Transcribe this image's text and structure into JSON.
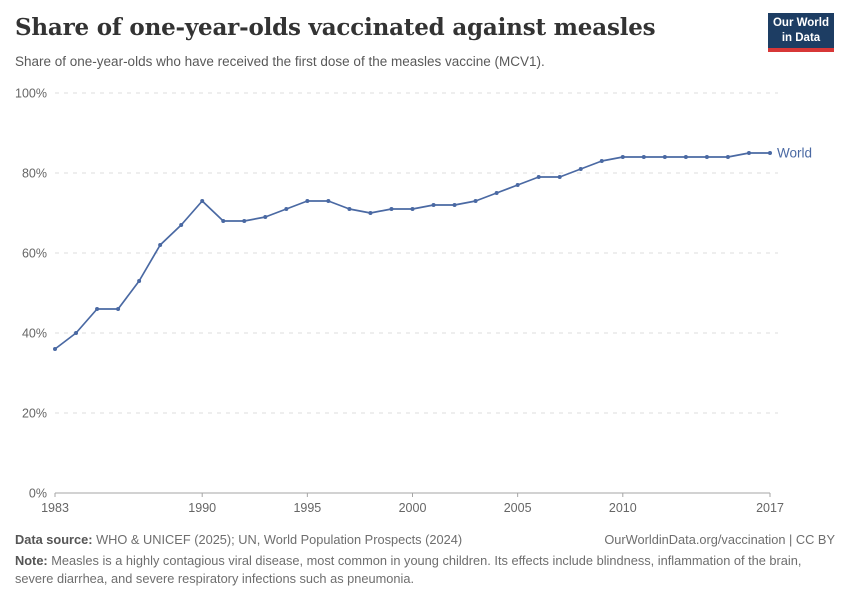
{
  "header": {
    "title": "Share of one-year-olds vaccinated against measles",
    "subtitle": "Share of one-year-olds who have received the first dose of the measles vaccine (MCV1).",
    "logo": {
      "line1": "Our World",
      "line2": "in Data"
    }
  },
  "chart_data": {
    "type": "line",
    "title": "Share of one-year-olds vaccinated against measles",
    "xlabel": "",
    "ylabel": "",
    "xlim": [
      1983,
      2017
    ],
    "ylim": [
      0,
      100
    ],
    "grid": "horizontal-dashed",
    "legend_position": "end-of-line",
    "x_ticks": [
      {
        "value": 1983,
        "label": "1983"
      },
      {
        "value": 1990,
        "label": "1990"
      },
      {
        "value": 1995,
        "label": "1995"
      },
      {
        "value": 2000,
        "label": "2000"
      },
      {
        "value": 2005,
        "label": "2005"
      },
      {
        "value": 2010,
        "label": "2010"
      },
      {
        "value": 2017,
        "label": "2017"
      }
    ],
    "y_ticks": [
      {
        "value": 0,
        "label": "0%"
      },
      {
        "value": 20,
        "label": "20%"
      },
      {
        "value": 40,
        "label": "40%"
      },
      {
        "value": 60,
        "label": "60%"
      },
      {
        "value": 80,
        "label": "80%"
      },
      {
        "value": 100,
        "label": "100%"
      }
    ],
    "series": [
      {
        "name": "World",
        "color": "#4a69a3",
        "x": [
          1983,
          1984,
          1985,
          1986,
          1987,
          1988,
          1989,
          1990,
          1991,
          1992,
          1993,
          1994,
          1995,
          1996,
          1997,
          1998,
          1999,
          2000,
          2001,
          2002,
          2003,
          2004,
          2005,
          2006,
          2007,
          2008,
          2009,
          2010,
          2011,
          2012,
          2013,
          2014,
          2015,
          2016,
          2017
        ],
        "values": [
          36,
          40,
          46,
          46,
          53,
          62,
          67,
          73,
          68,
          68,
          69,
          71,
          73,
          73,
          71,
          70,
          71,
          71,
          72,
          72,
          73,
          75,
          77,
          79,
          79,
          81,
          83,
          84,
          84,
          84,
          84,
          84,
          84,
          85,
          85
        ]
      }
    ]
  },
  "footer": {
    "source_label": "Data source:",
    "source_text": " WHO & UNICEF (2025); UN, World Population Prospects (2024)",
    "attribution": "OurWorldinData.org/vaccination | CC BY",
    "note_label": "Note:",
    "note_text": " Measles is a highly contagious viral disease, most common in young children. Its effects include blindness, inflammation of the brain, severe diarrhea, and severe respiratory infections such as pneumonia."
  },
  "colors": {
    "line": "#4a69a3",
    "grid": "#dddddd",
    "axis": "#a5a5a5",
    "tick_label": "#666666",
    "title": "#333333",
    "subtitle": "#595959",
    "footer_text": "#6e6e6e",
    "logo_bg": "#1d3d63",
    "logo_stripe": "#d73737"
  }
}
